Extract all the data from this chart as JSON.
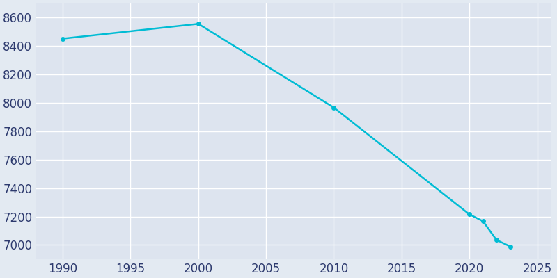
{
  "years": [
    1990,
    2000,
    2010,
    2020,
    2021,
    2022,
    2023
  ],
  "population": [
    8449,
    8553,
    7965,
    7215,
    7167,
    7035,
    6990
  ],
  "line_color": "#00BCD4",
  "marker_color": "#00BCD4",
  "bg_color": "#E3EAF2",
  "axes_bg_color": "#DDE4EF",
  "tick_color": "#2D3A6E",
  "grid_color": "#FFFFFF",
  "xlim": [
    1988,
    2026
  ],
  "ylim": [
    6900,
    8700
  ],
  "yticks": [
    7000,
    7200,
    7400,
    7600,
    7800,
    8000,
    8200,
    8400,
    8600
  ],
  "xticks": [
    1990,
    1995,
    2000,
    2005,
    2010,
    2015,
    2020,
    2025
  ],
  "linewidth": 1.8,
  "marker_size": 4,
  "tick_fontsize": 12
}
